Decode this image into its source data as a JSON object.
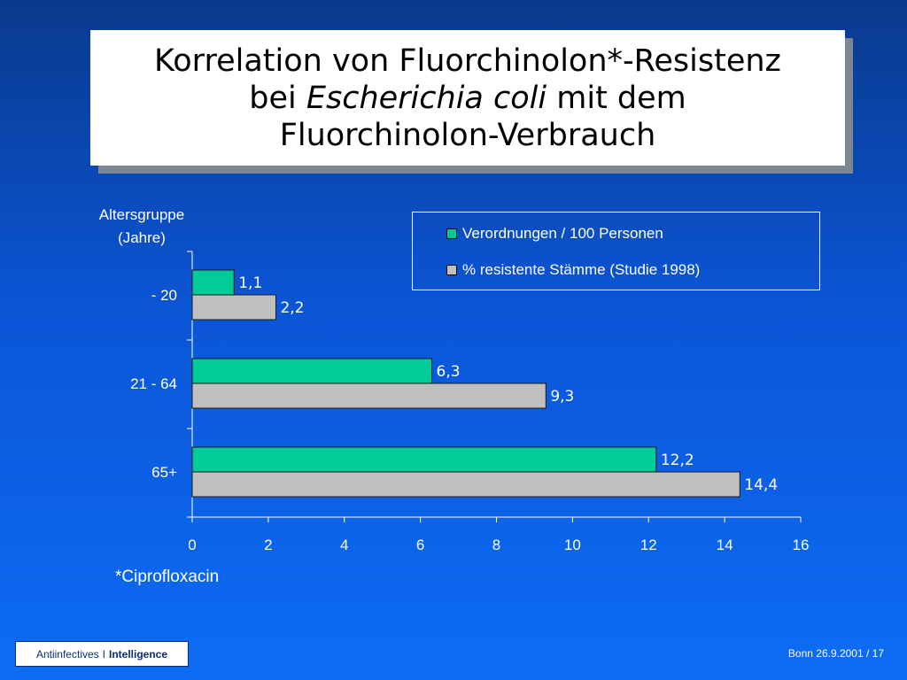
{
  "slide": {
    "title_line1": "Korrelation von Fluorchinolon*-Resistenz",
    "title_line2_pre": "bei",
    "title_line2_em": "Escherichia coli",
    "title_line2_post": "mit dem",
    "title_line3": "Fluorchinolon-Verbrauch",
    "footnote": "*Ciprofloxacin",
    "brand_left": "Antiinfectives",
    "brand_sep": "I",
    "brand_right": "Intelligence",
    "footer": "Bonn 26.9.2001 / 17"
  },
  "chart_data": {
    "type": "bar",
    "orientation": "horizontal",
    "ylabel_line1": "Altersgruppe",
    "ylabel_line2": "(Jahre)",
    "categories": [
      "- 20",
      "21 - 64",
      "65+"
    ],
    "series": [
      {
        "name": "Verordnungen / 100 Personen",
        "color": "#00cc99",
        "values": [
          1.1,
          6.3,
          12.2
        ],
        "labels": [
          "1,1",
          "6,3",
          "12,2"
        ]
      },
      {
        "name": "% resistente Stämme (Studie 1998)",
        "color": "#c0c0c0",
        "values": [
          2.2,
          9.3,
          14.4
        ],
        "labels": [
          "2,2",
          "9,3",
          "14,4"
        ]
      }
    ],
    "xlim": [
      0,
      16
    ],
    "xticks": [
      0,
      2,
      4,
      6,
      8,
      10,
      12,
      14,
      16
    ],
    "grid": false,
    "legend_position": "top-right"
  }
}
